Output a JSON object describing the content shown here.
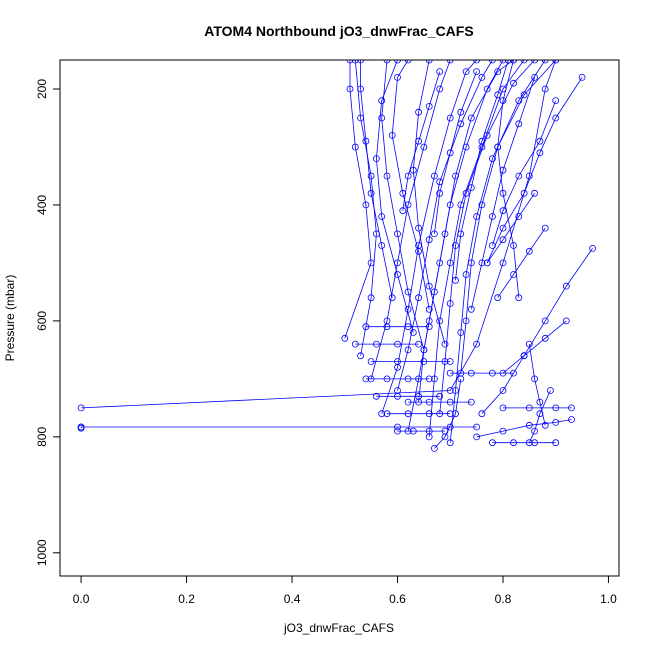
{
  "chart_data": {
    "type": "scatter",
    "title": "ATOM4 Northbound jO3_dnwFrac_CAFS",
    "xlabel": "jO3_dnwFrac_CAFS",
    "ylabel": "Pressure (mbar)",
    "xlim": [
      -0.04,
      1.02
    ],
    "ylim": [
      1040,
      150
    ],
    "y_reversed": true,
    "x_ticks": [
      0.0,
      0.2,
      0.4,
      0.6,
      0.8,
      1.0
    ],
    "x_tick_labels": [
      "0.0",
      "0.2",
      "0.4",
      "0.6",
      "0.8",
      "1.0"
    ],
    "y_ticks": [
      200,
      400,
      600,
      800,
      1000
    ],
    "y_tick_labels": [
      "200",
      "400",
      "600",
      "800",
      "1000"
    ],
    "grid": false,
    "legend": "none",
    "series_color": "#0000ff",
    "marker": "open-circle",
    "connected": true,
    "series": [
      {
        "points": [
          [
            0.0,
            750
          ],
          [
            0.7,
            720
          ],
          [
            0.75,
            640
          ],
          [
            0.8,
            500
          ],
          [
            0.85,
            350
          ],
          [
            0.88,
            200
          ],
          [
            0.9,
            150
          ]
        ]
      },
      {
        "points": [
          [
            0.0,
            783
          ],
          [
            0.6,
            783
          ],
          [
            0.7,
            783
          ],
          [
            0.75,
            783
          ]
        ]
      },
      {
        "points": [
          [
            0.0,
            785
          ],
          [
            0.0,
            783
          ]
        ]
      },
      {
        "points": [
          [
            0.5,
            630
          ],
          [
            0.55,
            500
          ],
          [
            0.54,
            400
          ],
          [
            0.52,
            300
          ],
          [
            0.51,
            200
          ],
          [
            0.51,
            150
          ]
        ]
      },
      {
        "points": [
          [
            0.53,
            660
          ],
          [
            0.55,
            560
          ],
          [
            0.56,
            450
          ],
          [
            0.55,
            350
          ],
          [
            0.53,
            250
          ],
          [
            0.52,
            150
          ]
        ]
      },
      {
        "points": [
          [
            0.55,
            700
          ],
          [
            0.58,
            600
          ],
          [
            0.6,
            500
          ],
          [
            0.62,
            400
          ],
          [
            0.65,
            300
          ],
          [
            0.68,
            200
          ],
          [
            0.7,
            150
          ]
        ]
      },
      {
        "points": [
          [
            0.57,
            760
          ],
          [
            0.6,
            680
          ],
          [
            0.62,
            580
          ],
          [
            0.64,
            470
          ],
          [
            0.67,
            350
          ],
          [
            0.7,
            250
          ],
          [
            0.73,
            170
          ],
          [
            0.75,
            150
          ]
        ]
      },
      {
        "points": [
          [
            0.6,
            720
          ],
          [
            0.62,
            650
          ],
          [
            0.64,
            560
          ],
          [
            0.66,
            460
          ],
          [
            0.68,
            360
          ],
          [
            0.72,
            260
          ],
          [
            0.76,
            180
          ],
          [
            0.78,
            150
          ]
        ]
      },
      {
        "points": [
          [
            0.62,
            790
          ],
          [
            0.64,
            700
          ],
          [
            0.66,
            600
          ],
          [
            0.68,
            500
          ],
          [
            0.7,
            400
          ],
          [
            0.73,
            300
          ],
          [
            0.77,
            200
          ],
          [
            0.8,
            150
          ]
        ]
      },
      {
        "points": [
          [
            0.64,
            740
          ],
          [
            0.65,
            650
          ],
          [
            0.67,
            550
          ],
          [
            0.69,
            450
          ],
          [
            0.71,
            350
          ],
          [
            0.74,
            250
          ],
          [
            0.79,
            170
          ],
          [
            0.82,
            150
          ]
        ]
      },
      {
        "points": [
          [
            0.66,
            800
          ],
          [
            0.67,
            700
          ],
          [
            0.68,
            600
          ],
          [
            0.7,
            500
          ],
          [
            0.72,
            400
          ],
          [
            0.76,
            300
          ],
          [
            0.8,
            200
          ],
          [
            0.84,
            150
          ]
        ]
      },
      {
        "points": [
          [
            0.68,
            760
          ],
          [
            0.69,
            670
          ],
          [
            0.7,
            570
          ],
          [
            0.71,
            470
          ],
          [
            0.73,
            380
          ],
          [
            0.77,
            280
          ],
          [
            0.82,
            190
          ],
          [
            0.86,
            150
          ]
        ]
      },
      {
        "points": [
          [
            0.7,
            810
          ],
          [
            0.71,
            720
          ],
          [
            0.72,
            620
          ],
          [
            0.73,
            520
          ],
          [
            0.75,
            420
          ],
          [
            0.78,
            320
          ],
          [
            0.83,
            220
          ],
          [
            0.88,
            150
          ]
        ]
      },
      {
        "points": [
          [
            0.72,
            690
          ],
          [
            0.73,
            600
          ],
          [
            0.74,
            500
          ],
          [
            0.76,
            400
          ],
          [
            0.79,
            300
          ],
          [
            0.84,
            210
          ],
          [
            0.9,
            150
          ]
        ]
      },
      {
        "points": [
          [
            0.65,
            650
          ],
          [
            0.62,
            550
          ],
          [
            0.6,
            450
          ],
          [
            0.58,
            350
          ],
          [
            0.57,
            250
          ],
          [
            0.58,
            150
          ]
        ]
      },
      {
        "points": [
          [
            0.66,
            580
          ],
          [
            0.64,
            480
          ],
          [
            0.61,
            380
          ],
          [
            0.59,
            280
          ],
          [
            0.6,
            180
          ],
          [
            0.62,
            150
          ]
        ]
      },
      {
        "points": [
          [
            0.63,
            620
          ],
          [
            0.6,
            520
          ],
          [
            0.57,
            420
          ],
          [
            0.56,
            320
          ],
          [
            0.57,
            220
          ],
          [
            0.6,
            150
          ]
        ]
      },
      {
        "points": [
          [
            0.69,
            640
          ],
          [
            0.66,
            540
          ],
          [
            0.64,
            440
          ],
          [
            0.63,
            340
          ],
          [
            0.64,
            240
          ],
          [
            0.66,
            150
          ]
        ]
      },
      {
        "points": [
          [
            0.8,
            750
          ],
          [
            0.85,
            750
          ],
          [
            0.9,
            750
          ],
          [
            0.93,
            750
          ]
        ]
      },
      {
        "points": [
          [
            0.75,
            800
          ],
          [
            0.8,
            790
          ],
          [
            0.85,
            780
          ],
          [
            0.9,
            775
          ],
          [
            0.93,
            770
          ]
        ]
      },
      {
        "points": [
          [
            0.78,
            810
          ],
          [
            0.82,
            810
          ],
          [
            0.86,
            810
          ],
          [
            0.9,
            810
          ]
        ]
      },
      {
        "points": [
          [
            0.97,
            475
          ],
          [
            0.92,
            540
          ],
          [
            0.88,
            600
          ],
          [
            0.84,
            660
          ],
          [
            0.8,
            720
          ],
          [
            0.76,
            760
          ]
        ]
      },
      {
        "points": [
          [
            0.95,
            180
          ],
          [
            0.9,
            250
          ],
          [
            0.87,
            310
          ],
          [
            0.84,
            380
          ],
          [
            0.8,
            440
          ],
          [
            0.77,
            500
          ]
        ]
      },
      {
        "points": [
          [
            0.9,
            220
          ],
          [
            0.87,
            290
          ],
          [
            0.83,
            350
          ],
          [
            0.8,
            410
          ],
          [
            0.78,
            470
          ]
        ]
      },
      {
        "points": [
          [
            0.88,
            440
          ],
          [
            0.85,
            480
          ],
          [
            0.82,
            520
          ],
          [
            0.79,
            560
          ]
        ]
      },
      {
        "points": [
          [
            0.86,
            380
          ],
          [
            0.83,
            420
          ],
          [
            0.8,
            460
          ],
          [
            0.77,
            500
          ]
        ]
      },
      {
        "points": [
          [
            0.92,
            600
          ],
          [
            0.88,
            630
          ],
          [
            0.84,
            660
          ],
          [
            0.8,
            690
          ]
        ]
      },
      {
        "points": [
          [
            0.55,
            670
          ],
          [
            0.6,
            670
          ],
          [
            0.65,
            670
          ],
          [
            0.7,
            670
          ]
        ]
      },
      {
        "points": [
          [
            0.54,
            700
          ],
          [
            0.58,
            700
          ],
          [
            0.62,
            700
          ],
          [
            0.66,
            700
          ]
        ]
      },
      {
        "points": [
          [
            0.56,
            730
          ],
          [
            0.6,
            730
          ],
          [
            0.64,
            730
          ],
          [
            0.68,
            730
          ]
        ]
      },
      {
        "points": [
          [
            0.58,
            760
          ],
          [
            0.62,
            760
          ],
          [
            0.66,
            760
          ],
          [
            0.7,
            760
          ]
        ]
      },
      {
        "points": [
          [
            0.6,
            790
          ],
          [
            0.63,
            790
          ],
          [
            0.66,
            790
          ],
          [
            0.69,
            790
          ]
        ]
      },
      {
        "points": [
          [
            0.62,
            740
          ],
          [
            0.66,
            740
          ],
          [
            0.7,
            740
          ],
          [
            0.74,
            740
          ]
        ]
      },
      {
        "points": [
          [
            0.52,
            640
          ],
          [
            0.56,
            640
          ],
          [
            0.6,
            640
          ],
          [
            0.64,
            640
          ]
        ]
      },
      {
        "points": [
          [
            0.54,
            610
          ],
          [
            0.58,
            610
          ],
          [
            0.62,
            610
          ],
          [
            0.66,
            610
          ]
        ]
      },
      {
        "points": [
          [
            0.7,
            690
          ],
          [
            0.74,
            690
          ],
          [
            0.78,
            690
          ],
          [
            0.82,
            690
          ]
        ]
      },
      {
        "points": [
          [
            0.67,
            820
          ],
          [
            0.69,
            800
          ],
          [
            0.71,
            760
          ],
          [
            0.72,
            700
          ]
        ]
      },
      {
        "points": [
          [
            0.74,
            580
          ],
          [
            0.76,
            500
          ],
          [
            0.78,
            420
          ],
          [
            0.8,
            340
          ],
          [
            0.83,
            260
          ],
          [
            0.86,
            180
          ]
        ]
      },
      {
        "points": [
          [
            0.83,
            560
          ],
          [
            0.82,
            470
          ],
          [
            0.8,
            380
          ],
          [
            0.79,
            300
          ],
          [
            0.8,
            220
          ],
          [
            0.82,
            150
          ]
        ]
      },
      {
        "points": [
          [
            0.59,
            560
          ],
          [
            0.57,
            470
          ],
          [
            0.55,
            380
          ],
          [
            0.54,
            290
          ],
          [
            0.53,
            200
          ],
          [
            0.53,
            150
          ]
        ]
      },
      {
        "points": [
          [
            0.61,
            410
          ],
          [
            0.62,
            350
          ],
          [
            0.64,
            290
          ],
          [
            0.66,
            230
          ],
          [
            0.68,
            170
          ]
        ]
      },
      {
        "points": [
          [
            0.67,
            450
          ],
          [
            0.68,
            380
          ],
          [
            0.7,
            310
          ],
          [
            0.72,
            240
          ],
          [
            0.75,
            170
          ]
        ]
      },
      {
        "points": [
          [
            0.71,
            530
          ],
          [
            0.72,
            450
          ],
          [
            0.74,
            370
          ],
          [
            0.76,
            290
          ],
          [
            0.79,
            210
          ],
          [
            0.81,
            150
          ]
        ]
      },
      {
        "points": [
          [
            0.85,
            640
          ],
          [
            0.86,
            700
          ],
          [
            0.87,
            740
          ],
          [
            0.88,
            780
          ]
        ]
      },
      {
        "points": [
          [
            0.89,
            720
          ],
          [
            0.87,
            760
          ],
          [
            0.86,
            790
          ],
          [
            0.85,
            810
          ]
        ]
      }
    ]
  }
}
